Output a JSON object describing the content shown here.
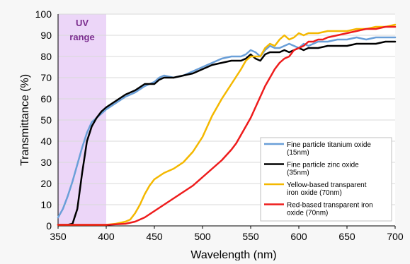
{
  "chart_data": {
    "type": "line",
    "xlabel": "Wavelength (nm)",
    "ylabel": "Transmittance (%)",
    "xlim": [
      350,
      700
    ],
    "ylim": [
      0,
      100
    ],
    "x_ticks": [
      350,
      400,
      450,
      500,
      550,
      600,
      650,
      700
    ],
    "y_ticks": [
      0,
      10,
      20,
      30,
      40,
      50,
      60,
      70,
      80,
      90,
      100
    ],
    "grid": "horizontal",
    "legend_position": "lower-right",
    "annotation": {
      "lines": [
        "UV",
        "range"
      ],
      "x_range": [
        350,
        400
      ],
      "fill_color": "#ecd6f8",
      "text_color": "#7b2d8e"
    },
    "series": [
      {
        "name_lines": [
          "Fine particle titanium oxide",
          "(15nm)"
        ],
        "color": "#6a9fd8",
        "points": [
          [
            350,
            4
          ],
          [
            355,
            8
          ],
          [
            360,
            14
          ],
          [
            365,
            21
          ],
          [
            370,
            29
          ],
          [
            375,
            37
          ],
          [
            380,
            44
          ],
          [
            385,
            49
          ],
          [
            390,
            51
          ],
          [
            395,
            53
          ],
          [
            400,
            55
          ],
          [
            410,
            58
          ],
          [
            420,
            61
          ],
          [
            430,
            63
          ],
          [
            440,
            66
          ],
          [
            450,
            68
          ],
          [
            455,
            70
          ],
          [
            460,
            71
          ],
          [
            470,
            70
          ],
          [
            480,
            71
          ],
          [
            490,
            73
          ],
          [
            500,
            75
          ],
          [
            510,
            77
          ],
          [
            520,
            79
          ],
          [
            530,
            80
          ],
          [
            540,
            80
          ],
          [
            545,
            81
          ],
          [
            550,
            83
          ],
          [
            555,
            82
          ],
          [
            560,
            80
          ],
          [
            565,
            83
          ],
          [
            570,
            85
          ],
          [
            575,
            84
          ],
          [
            580,
            84
          ],
          [
            585,
            85
          ],
          [
            590,
            86
          ],
          [
            595,
            85
          ],
          [
            600,
            84
          ],
          [
            605,
            86
          ],
          [
            610,
            85
          ],
          [
            615,
            86
          ],
          [
            620,
            87
          ],
          [
            630,
            87
          ],
          [
            640,
            88
          ],
          [
            650,
            88
          ],
          [
            660,
            89
          ],
          [
            670,
            88
          ],
          [
            680,
            89
          ],
          [
            690,
            89
          ],
          [
            700,
            89
          ]
        ]
      },
      {
        "name_lines": [
          "Fine particle zinc oxide",
          "(35nm)"
        ],
        "color": "#000000",
        "points": [
          [
            350,
            0.5
          ],
          [
            360,
            0.5
          ],
          [
            365,
            1
          ],
          [
            370,
            8
          ],
          [
            375,
            25
          ],
          [
            380,
            40
          ],
          [
            385,
            47
          ],
          [
            390,
            51
          ],
          [
            395,
            54
          ],
          [
            400,
            56
          ],
          [
            410,
            59
          ],
          [
            420,
            62
          ],
          [
            430,
            64
          ],
          [
            440,
            67
          ],
          [
            450,
            67
          ],
          [
            455,
            69
          ],
          [
            460,
            70
          ],
          [
            470,
            70
          ],
          [
            480,
            71
          ],
          [
            490,
            72
          ],
          [
            500,
            74
          ],
          [
            510,
            76
          ],
          [
            520,
            77
          ],
          [
            530,
            78
          ],
          [
            540,
            78
          ],
          [
            545,
            79
          ],
          [
            550,
            81
          ],
          [
            555,
            79
          ],
          [
            560,
            78
          ],
          [
            565,
            81
          ],
          [
            570,
            82
          ],
          [
            575,
            82
          ],
          [
            580,
            82
          ],
          [
            585,
            83
          ],
          [
            590,
            82
          ],
          [
            595,
            83
          ],
          [
            600,
            84
          ],
          [
            605,
            83
          ],
          [
            610,
            84
          ],
          [
            620,
            84
          ],
          [
            630,
            85
          ],
          [
            640,
            85
          ],
          [
            650,
            85
          ],
          [
            660,
            86
          ],
          [
            670,
            86
          ],
          [
            680,
            86
          ],
          [
            690,
            87
          ],
          [
            700,
            87
          ]
        ]
      },
      {
        "name_lines": [
          "Yellow-based transparent",
          "iron oxide (70nm)"
        ],
        "color": "#f4b800",
        "points": [
          [
            350,
            0.5
          ],
          [
            400,
            0.5
          ],
          [
            410,
            1
          ],
          [
            420,
            2
          ],
          [
            425,
            3
          ],
          [
            430,
            6
          ],
          [
            435,
            10
          ],
          [
            440,
            15
          ],
          [
            445,
            19
          ],
          [
            450,
            22
          ],
          [
            460,
            25
          ],
          [
            470,
            27
          ],
          [
            480,
            30
          ],
          [
            490,
            35
          ],
          [
            500,
            42
          ],
          [
            510,
            52
          ],
          [
            520,
            60
          ],
          [
            530,
            67
          ],
          [
            540,
            74
          ],
          [
            545,
            78
          ],
          [
            550,
            80
          ],
          [
            555,
            80
          ],
          [
            560,
            80
          ],
          [
            565,
            84
          ],
          [
            570,
            86
          ],
          [
            575,
            85
          ],
          [
            580,
            88
          ],
          [
            585,
            90
          ],
          [
            590,
            88
          ],
          [
            595,
            89
          ],
          [
            600,
            91
          ],
          [
            605,
            90
          ],
          [
            610,
            91
          ],
          [
            620,
            91
          ],
          [
            630,
            92
          ],
          [
            640,
            92
          ],
          [
            650,
            92
          ],
          [
            660,
            93
          ],
          [
            670,
            93
          ],
          [
            680,
            94
          ],
          [
            690,
            94
          ],
          [
            700,
            95
          ]
        ]
      },
      {
        "name_lines": [
          "Red-based transparent iron",
          "oxide (70nm)"
        ],
        "color": "#ee1c1c",
        "points": [
          [
            350,
            0.5
          ],
          [
            400,
            0.5
          ],
          [
            420,
            1
          ],
          [
            430,
            2
          ],
          [
            440,
            4
          ],
          [
            450,
            7
          ],
          [
            460,
            10
          ],
          [
            470,
            13
          ],
          [
            480,
            16
          ],
          [
            490,
            19
          ],
          [
            500,
            23
          ],
          [
            510,
            27
          ],
          [
            520,
            31
          ],
          [
            530,
            36
          ],
          [
            535,
            39
          ],
          [
            540,
            43
          ],
          [
            545,
            47
          ],
          [
            550,
            51
          ],
          [
            555,
            56
          ],
          [
            560,
            61
          ],
          [
            565,
            66
          ],
          [
            570,
            70
          ],
          [
            575,
            74
          ],
          [
            580,
            77
          ],
          [
            585,
            79
          ],
          [
            590,
            80
          ],
          [
            595,
            83
          ],
          [
            600,
            84
          ],
          [
            605,
            85
          ],
          [
            610,
            87
          ],
          [
            615,
            87
          ],
          [
            620,
            88
          ],
          [
            625,
            88
          ],
          [
            630,
            89
          ],
          [
            640,
            90
          ],
          [
            650,
            91
          ],
          [
            660,
            92
          ],
          [
            670,
            93
          ],
          [
            680,
            93
          ],
          [
            690,
            94
          ],
          [
            700,
            94
          ]
        ]
      }
    ]
  }
}
